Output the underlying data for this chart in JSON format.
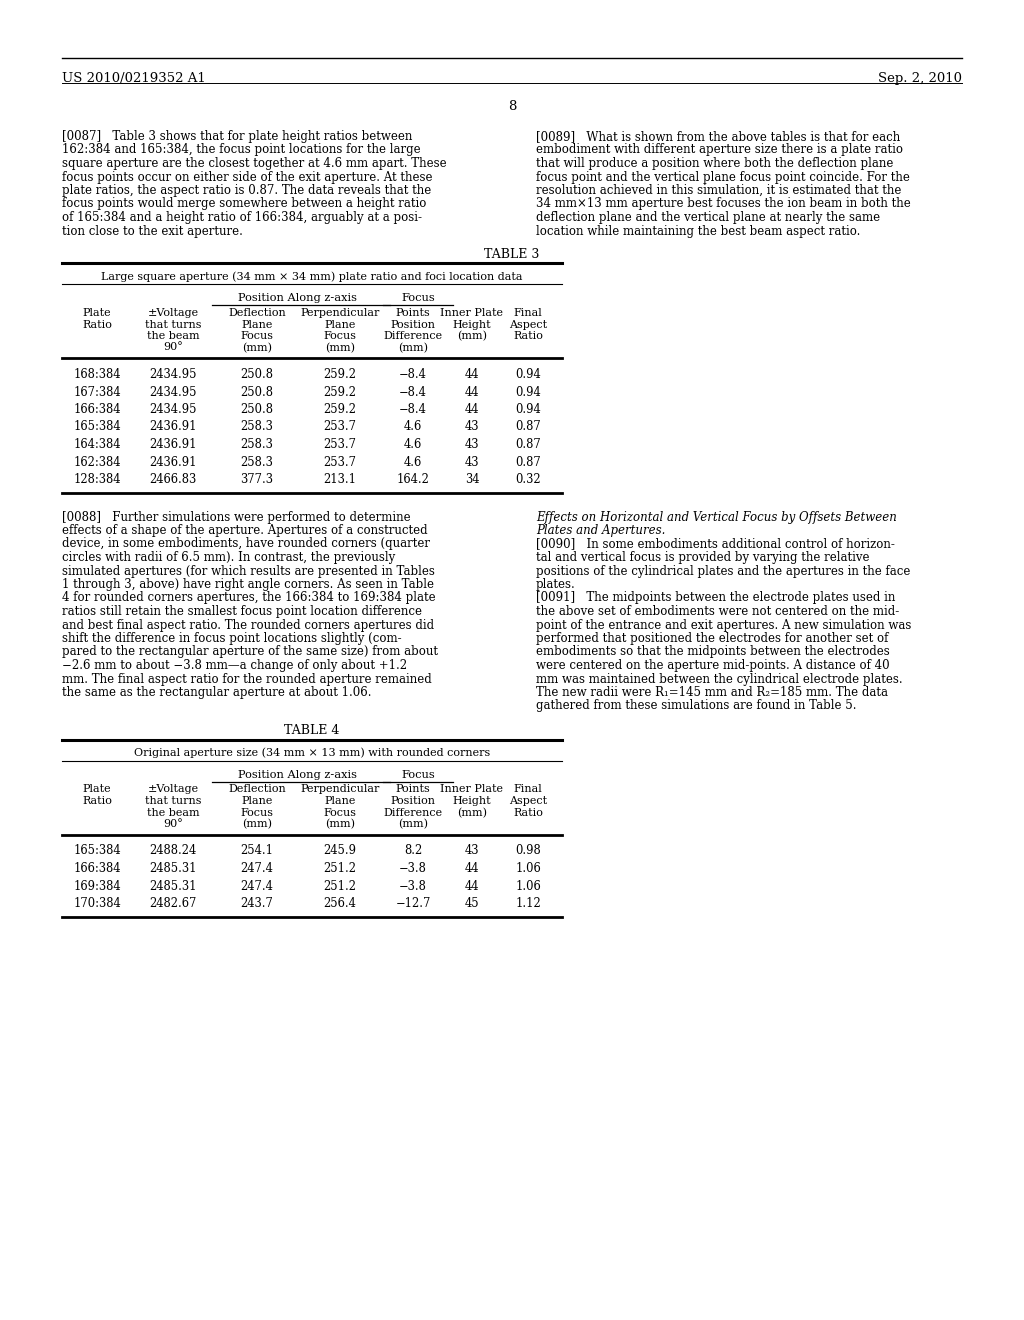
{
  "header_left": "US 2010/0219352 A1",
  "header_right": "Sep. 2, 2010",
  "page_number": "8",
  "background_color": "#ffffff",
  "table3_title": "TABLE 3",
  "table3_subtitle": "Large square aperture (34 mm × 34 mm) plate ratio and foci location data",
  "table3_data": [
    [
      "168:384",
      "2434.95",
      "250.8",
      "259.2",
      "−8.4",
      "44",
      "0.94"
    ],
    [
      "167:384",
      "2434.95",
      "250.8",
      "259.2",
      "−8.4",
      "44",
      "0.94"
    ],
    [
      "166:384",
      "2434.95",
      "250.8",
      "259.2",
      "−8.4",
      "44",
      "0.94"
    ],
    [
      "165:384",
      "2436.91",
      "258.3",
      "253.7",
      "4.6",
      "43",
      "0.87"
    ],
    [
      "164:384",
      "2436.91",
      "258.3",
      "253.7",
      "4.6",
      "43",
      "0.87"
    ],
    [
      "162:384",
      "2436.91",
      "258.3",
      "253.7",
      "4.6",
      "43",
      "0.87"
    ],
    [
      "128:384",
      "2466.83",
      "377.3",
      "213.1",
      "164.2",
      "34",
      "0.32"
    ]
  ],
  "table4_title": "TABLE 4",
  "table4_subtitle": "Original aperture size (34 mm × 13 mm) with rounded corners",
  "table4_data": [
    [
      "165:384",
      "2488.24",
      "254.1",
      "245.9",
      "8.2",
      "43",
      "0.98"
    ],
    [
      "166:384",
      "2485.31",
      "247.4",
      "251.2",
      "−3.8",
      "44",
      "1.06"
    ],
    [
      "169:384",
      "2485.31",
      "247.4",
      "251.2",
      "−3.8",
      "44",
      "1.06"
    ],
    [
      "170:384",
      "2482.67",
      "243.7",
      "256.4",
      "−12.7",
      "45",
      "1.12"
    ]
  ]
}
